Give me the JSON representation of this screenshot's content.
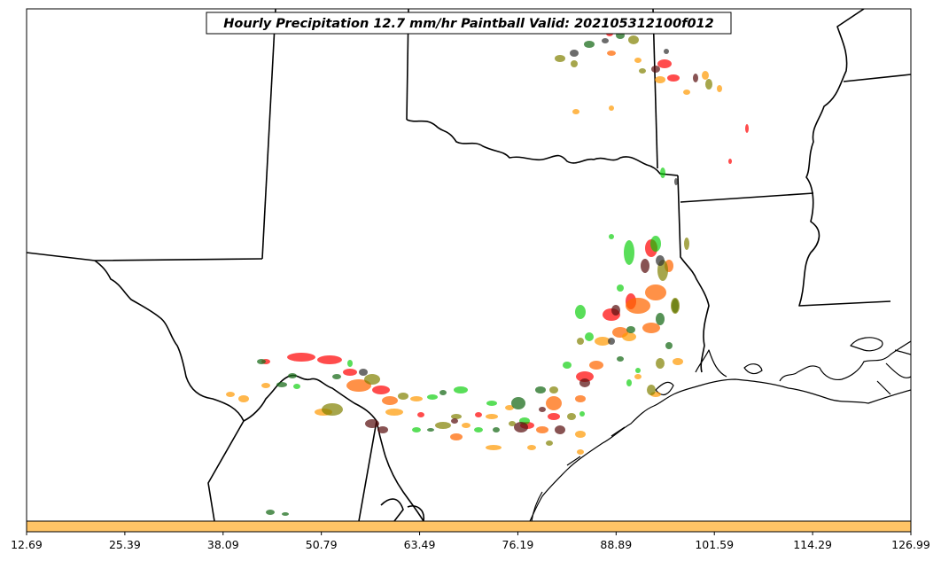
{
  "title": "Hourly Precipitation 12.7 mm/hr Paintball Valid: 202105312100f012",
  "colorbar": {
    "fill_color": "#ffc466",
    "tick_labels": [
      "12.69",
      "25.39",
      "38.09",
      "50.79",
      "63.49",
      "76.19",
      "88.89",
      "101.59",
      "114.29",
      "126.99"
    ]
  },
  "paintball_colors": [
    "#ff0000",
    "#ff6600",
    "#ff9900",
    "#228b22",
    "#00cc00",
    "#808000",
    "#5a1010",
    "#333333"
  ]
}
